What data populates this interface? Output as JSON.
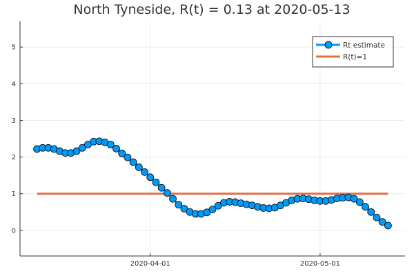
{
  "chart_data": {
    "type": "line",
    "title": "North Tyneside, R(t) = 0.13 at 2020-05-13",
    "xlabel": "",
    "ylabel": "",
    "x_start": "2020-03-12",
    "x_end": "2020-05-13",
    "xlim": [
      "2020-03-09",
      "2020-05-16"
    ],
    "ylim": [
      -0.7,
      5.7
    ],
    "xticks": [
      {
        "date": "2020-04-01",
        "label": "2020-04-01"
      },
      {
        "date": "2020-05-01",
        "label": "2020-05-01"
      }
    ],
    "yticks": [
      {
        "value": 0,
        "label": "0"
      },
      {
        "value": 1,
        "label": "1"
      },
      {
        "value": 2,
        "label": "2"
      },
      {
        "value": 3,
        "label": "3"
      },
      {
        "value": 4,
        "label": "4"
      },
      {
        "value": 5,
        "label": "5"
      }
    ],
    "grid": true,
    "legend_position": "top-right",
    "series": [
      {
        "name": "Rt estimate",
        "style": "line-markers",
        "color": "#009af9",
        "line_color": "#009af9",
        "marker_color": "#009af9",
        "x": [
          "2020-03-12",
          "2020-03-13",
          "2020-03-14",
          "2020-03-15",
          "2020-03-16",
          "2020-03-17",
          "2020-03-18",
          "2020-03-19",
          "2020-03-20",
          "2020-03-21",
          "2020-03-22",
          "2020-03-23",
          "2020-03-24",
          "2020-03-25",
          "2020-03-26",
          "2020-03-27",
          "2020-03-28",
          "2020-03-29",
          "2020-03-30",
          "2020-03-31",
          "2020-04-01",
          "2020-04-02",
          "2020-04-03",
          "2020-04-04",
          "2020-04-05",
          "2020-04-06",
          "2020-04-07",
          "2020-04-08",
          "2020-04-09",
          "2020-04-10",
          "2020-04-11",
          "2020-04-12",
          "2020-04-13",
          "2020-04-14",
          "2020-04-15",
          "2020-04-16",
          "2020-04-17",
          "2020-04-18",
          "2020-04-19",
          "2020-04-20",
          "2020-04-21",
          "2020-04-22",
          "2020-04-23",
          "2020-04-24",
          "2020-04-25",
          "2020-04-26",
          "2020-04-27",
          "2020-04-28",
          "2020-04-29",
          "2020-04-30",
          "2020-05-01",
          "2020-05-02",
          "2020-05-03",
          "2020-05-04",
          "2020-05-05",
          "2020-05-06",
          "2020-05-07",
          "2020-05-08",
          "2020-05-09",
          "2020-05-10",
          "2020-05-11",
          "2020-05-12",
          "2020-05-13"
        ],
        "values": [
          2.22,
          2.25,
          2.25,
          2.22,
          2.16,
          2.11,
          2.11,
          2.16,
          2.25,
          2.34,
          2.42,
          2.43,
          2.4,
          2.34,
          2.23,
          2.1,
          1.99,
          1.86,
          1.72,
          1.59,
          1.45,
          1.31,
          1.16,
          1.02,
          0.86,
          0.7,
          0.59,
          0.5,
          0.45,
          0.45,
          0.49,
          0.57,
          0.67,
          0.75,
          0.78,
          0.77,
          0.74,
          0.71,
          0.68,
          0.64,
          0.61,
          0.6,
          0.62,
          0.68,
          0.75,
          0.82,
          0.86,
          0.87,
          0.85,
          0.82,
          0.8,
          0.8,
          0.83,
          0.87,
          0.89,
          0.9,
          0.86,
          0.77,
          0.64,
          0.5,
          0.35,
          0.23,
          0.13
        ]
      },
      {
        "name": "R(t)=1",
        "style": "line",
        "color": "#e26f46",
        "x": [
          "2020-03-12",
          "2020-05-13"
        ],
        "values": [
          1,
          1
        ]
      }
    ]
  }
}
